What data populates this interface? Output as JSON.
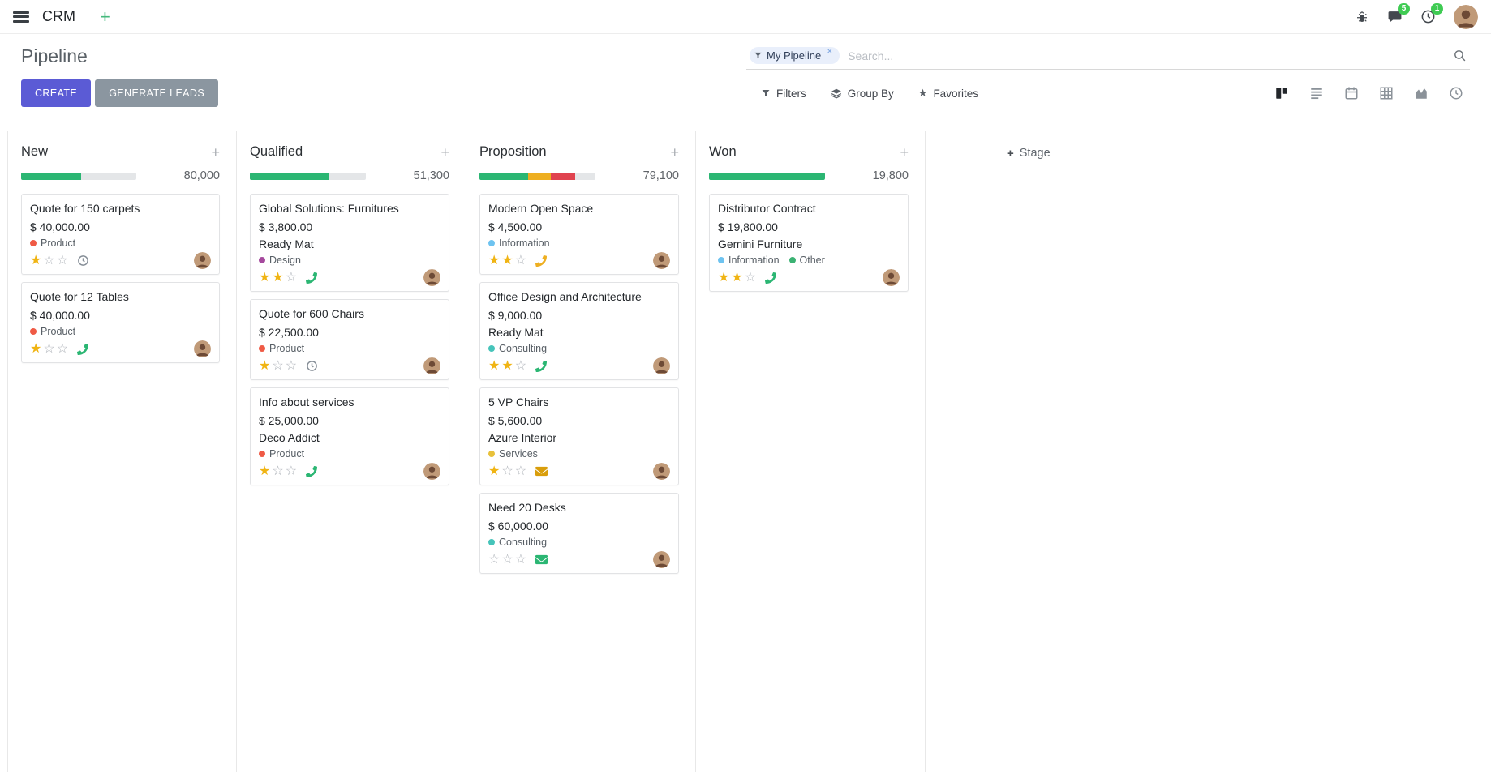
{
  "colors": {
    "primary_button": "#5b5bd5",
    "secondary_button": "#8b96a0",
    "badge": "#3fcb53",
    "success": "#2bb673",
    "warning": "#eeaf21",
    "danger": "#e0434f",
    "star_filled": "#f0b413"
  },
  "navbar": {
    "app_name": "CRM",
    "plus_label": "+",
    "systray": {
      "messages_badge": "5",
      "activities_badge": "1"
    }
  },
  "control_panel": {
    "title": "Pipeline",
    "create_label": "CREATE",
    "generate_leads_label": "GENERATE LEADS",
    "search": {
      "facet_label": "My Pipeline",
      "remove_facet": "×",
      "placeholder": "Search..."
    },
    "filters_label": "Filters",
    "group_by_label": "Group By",
    "favorites_label": "Favorites",
    "favorites_star": "★",
    "view_switcher": {
      "active_view": "kanban",
      "views": [
        "kanban",
        "list",
        "calendar",
        "pivot",
        "graph",
        "activity"
      ]
    }
  },
  "board": {
    "quick_add_label": "+",
    "add_stage_plus": "+",
    "add_stage_label": "Stage",
    "columns": [
      {
        "name": "New",
        "count": "80,000",
        "progress": [
          {
            "color": "#2bb673",
            "pct": 52
          }
        ],
        "cards": [
          {
            "title": "Quote for 150 carpets",
            "amount": "$ 40,000.00",
            "tags": [
              {
                "label": "Product",
                "color": "#ef5a45"
              }
            ],
            "stars": 1,
            "activity": {
              "icon": "clock-icon",
              "color": "#878f98"
            }
          },
          {
            "title": "Quote for 12 Tables",
            "amount": "$ 40,000.00",
            "tags": [
              {
                "label": "Product",
                "color": "#ef5a45"
              }
            ],
            "stars": 1,
            "activity": {
              "icon": "phone-icon",
              "color": "#2bb673"
            }
          }
        ]
      },
      {
        "name": "Qualified",
        "count": "51,300",
        "progress": [
          {
            "color": "#2bb673",
            "pct": 68
          }
        ],
        "cards": [
          {
            "title": "Global Solutions: Furnitures",
            "amount": "$ 3,800.00",
            "partner": "Ready Mat",
            "tags": [
              {
                "label": "Design",
                "color": "#a5499d"
              }
            ],
            "stars": 2,
            "activity": {
              "icon": "phone-icon",
              "color": "#2bb673"
            }
          },
          {
            "title": "Quote for 600 Chairs",
            "amount": "$ 22,500.00",
            "tags": [
              {
                "label": "Product",
                "color": "#ef5a45"
              }
            ],
            "stars": 1,
            "activity": {
              "icon": "clock-icon",
              "color": "#878f98"
            }
          },
          {
            "title": "Info about services",
            "amount": "$ 25,000.00",
            "partner": "Deco Addict",
            "tags": [
              {
                "label": "Product",
                "color": "#ef5a45"
              }
            ],
            "stars": 1,
            "activity": {
              "icon": "phone-icon",
              "color": "#2bb673"
            }
          }
        ]
      },
      {
        "name": "Proposition",
        "count": "79,100",
        "progress": [
          {
            "color": "#2bb673",
            "pct": 42
          },
          {
            "color": "#eeaf21",
            "pct": 20
          },
          {
            "color": "#e0434f",
            "pct": 21
          }
        ],
        "cards": [
          {
            "title": "Modern Open Space",
            "amount": "$ 4,500.00",
            "tags": [
              {
                "label": "Information",
                "color": "#6ec3f0"
              }
            ],
            "stars": 2,
            "activity": {
              "icon": "phone-icon",
              "color": "#eeaf21"
            }
          },
          {
            "title": "Office Design and Architecture",
            "amount": "$ 9,000.00",
            "partner": "Ready Mat",
            "tags": [
              {
                "label": "Consulting",
                "color": "#46c4ba"
              }
            ],
            "stars": 2,
            "activity": {
              "icon": "phone-icon",
              "color": "#2bb673"
            }
          },
          {
            "title": "5 VP Chairs",
            "amount": "$ 5,600.00",
            "partner": "Azure Interior",
            "tags": [
              {
                "label": "Services",
                "color": "#e8c13a"
              }
            ],
            "stars": 1,
            "activity": {
              "icon": "envelope-icon",
              "color": "#d99e0b"
            }
          },
          {
            "title": "Need 20 Desks",
            "amount": "$ 60,000.00",
            "tags": [
              {
                "label": "Consulting",
                "color": "#46c4ba"
              }
            ],
            "stars": 0,
            "activity": {
              "icon": "envelope-icon",
              "color": "#2bb673"
            }
          }
        ]
      },
      {
        "name": "Won",
        "count": "19,800",
        "progress": [
          {
            "color": "#2bb673",
            "pct": 100
          }
        ],
        "cards": [
          {
            "title": "Distributor Contract",
            "amount": "$ 19,800.00",
            "partner": "Gemini Furniture",
            "tags": [
              {
                "label": "Information",
                "color": "#6ec3f0"
              },
              {
                "label": "Other",
                "color": "#3bb273"
              }
            ],
            "stars": 2,
            "activity": {
              "icon": "phone-icon",
              "color": "#2bb673"
            }
          }
        ]
      }
    ]
  }
}
